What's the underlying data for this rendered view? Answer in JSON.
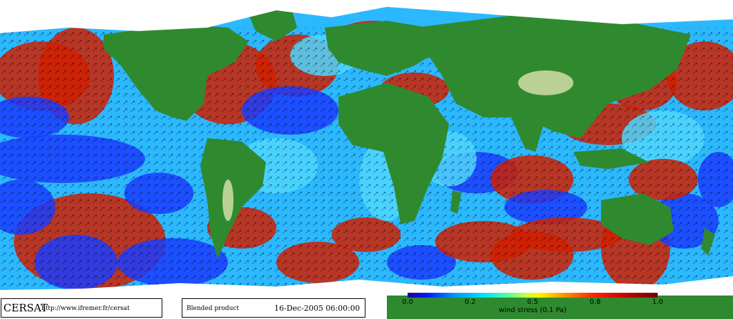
{
  "map": {
    "land_color": "#2f8a2f",
    "ice_color": "#ffffff",
    "high_color": "#d01f00",
    "low_color": "#1a3cff",
    "mid_color": "#4fd6ff"
  },
  "footer": {
    "logo_text": "CERSAT",
    "url": "http://www.ifremer.fr/cersat",
    "product": "Blended product",
    "date": "16-Dec-2005 06:00:00"
  },
  "legend": {
    "title": "wind stress (0.1 Pa)",
    "ticks": [
      "0.0",
      "0.2",
      "0.5",
      "0.8",
      "1.0"
    ],
    "tick_values": [
      0.0,
      0.25,
      0.5,
      0.75,
      1.0
    ]
  }
}
